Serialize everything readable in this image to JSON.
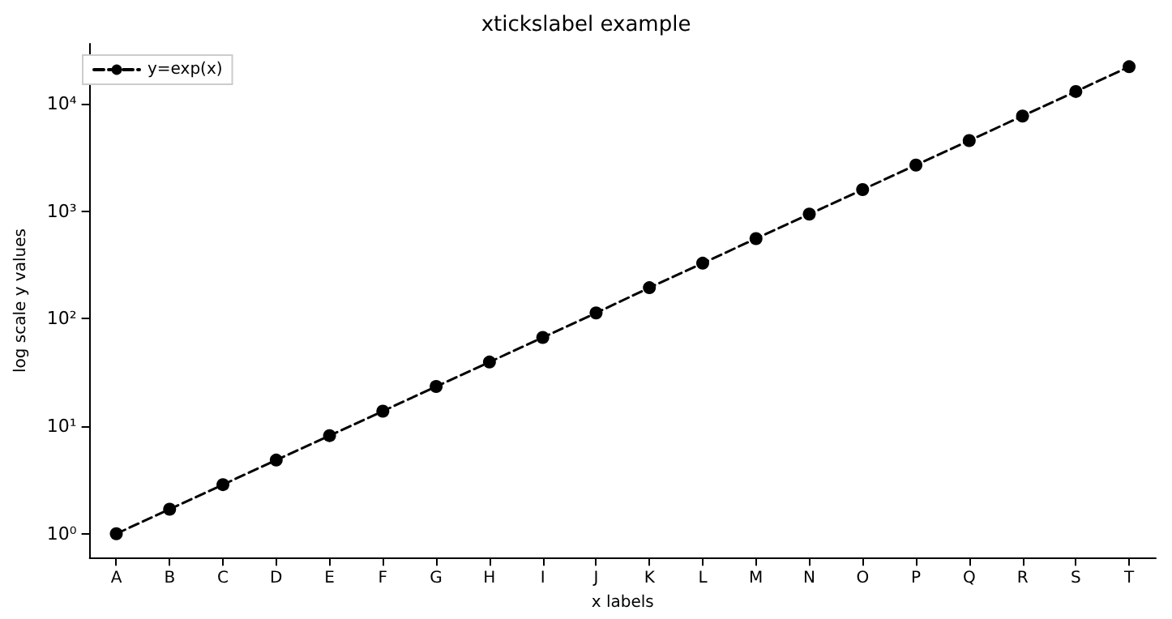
{
  "chart_data": {
    "type": "line",
    "title": "xtickslabel example",
    "xlabel": "x labels",
    "ylabel": "log scale y values",
    "categories": [
      "A",
      "B",
      "C",
      "D",
      "E",
      "F",
      "G",
      "H",
      "I",
      "J",
      "K",
      "L",
      "M",
      "N",
      "O",
      "P",
      "Q",
      "R",
      "S",
      "T"
    ],
    "series": [
      {
        "name": "y=exp(x)",
        "color": "#000000",
        "values": [
          1,
          1.69,
          2.86,
          4.84,
          8.17,
          13.8,
          23.4,
          39.5,
          66.8,
          113,
          194,
          328,
          555,
          938,
          1585,
          2680,
          4530,
          7660,
          12960,
          22030
        ]
      }
    ],
    "log": true,
    "ylim": [
      0.6,
      36000
    ],
    "yticks": [
      {
        "value": 1,
        "label": "10⁰"
      },
      {
        "value": 10,
        "label": "10¹"
      },
      {
        "value": 100,
        "label": "10²"
      },
      {
        "value": 1000,
        "label": "10³"
      },
      {
        "value": 10000,
        "label": "10⁴"
      }
    ],
    "grid": false,
    "legend": "top left",
    "marker": "circle",
    "line_style": "dashed"
  }
}
